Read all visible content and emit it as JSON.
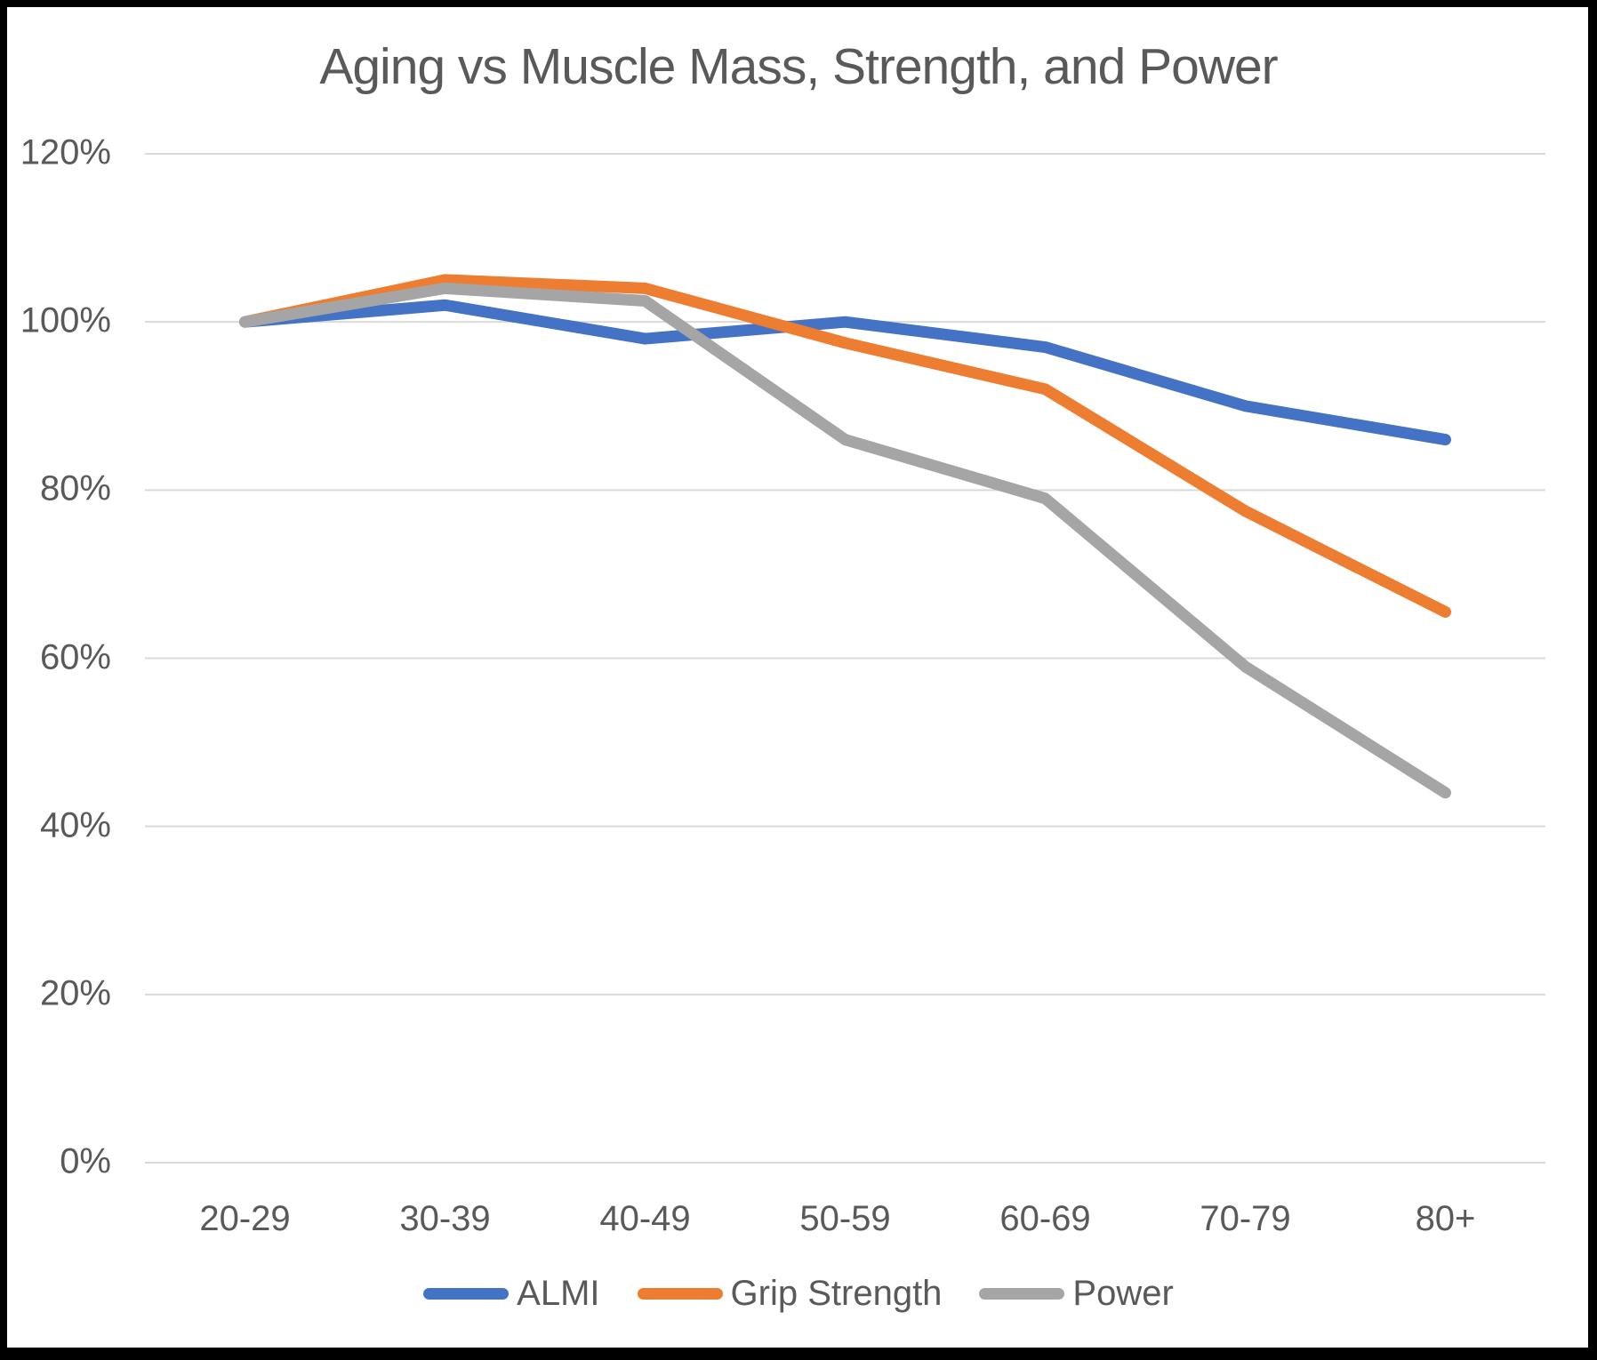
{
  "chart_data": {
    "type": "line",
    "title": "Aging vs Muscle Mass, Strength, and Power",
    "categories": [
      "20-29",
      "30-39",
      "40-49",
      "50-59",
      "60-69",
      "70-79",
      "80+"
    ],
    "series": [
      {
        "name": "ALMI",
        "color": "#4472C4",
        "values": [
          100,
          102,
          98,
          100,
          97,
          90,
          86
        ]
      },
      {
        "name": "Grip Strength",
        "color": "#ED7D31",
        "values": [
          100,
          105,
          104,
          97.5,
          92,
          77.5,
          65.5
        ]
      },
      {
        "name": "Power",
        "color": "#A5A5A5",
        "values": [
          100,
          104,
          102.5,
          86,
          79,
          59,
          44
        ]
      }
    ],
    "y_ticks": [
      0,
      20,
      40,
      60,
      80,
      100,
      120
    ],
    "y_tick_labels": [
      "0%",
      "20%",
      "40%",
      "60%",
      "80%",
      "100%",
      "120%"
    ],
    "ylim": [
      0,
      120
    ],
    "xlabel": "",
    "ylabel": "",
    "grid": "horizontal",
    "legend_position": "bottom"
  },
  "colors": {
    "gridline": "#D9D9D9",
    "text": "#595959",
    "background": "#FFFFFF",
    "frame": "#000000"
  }
}
